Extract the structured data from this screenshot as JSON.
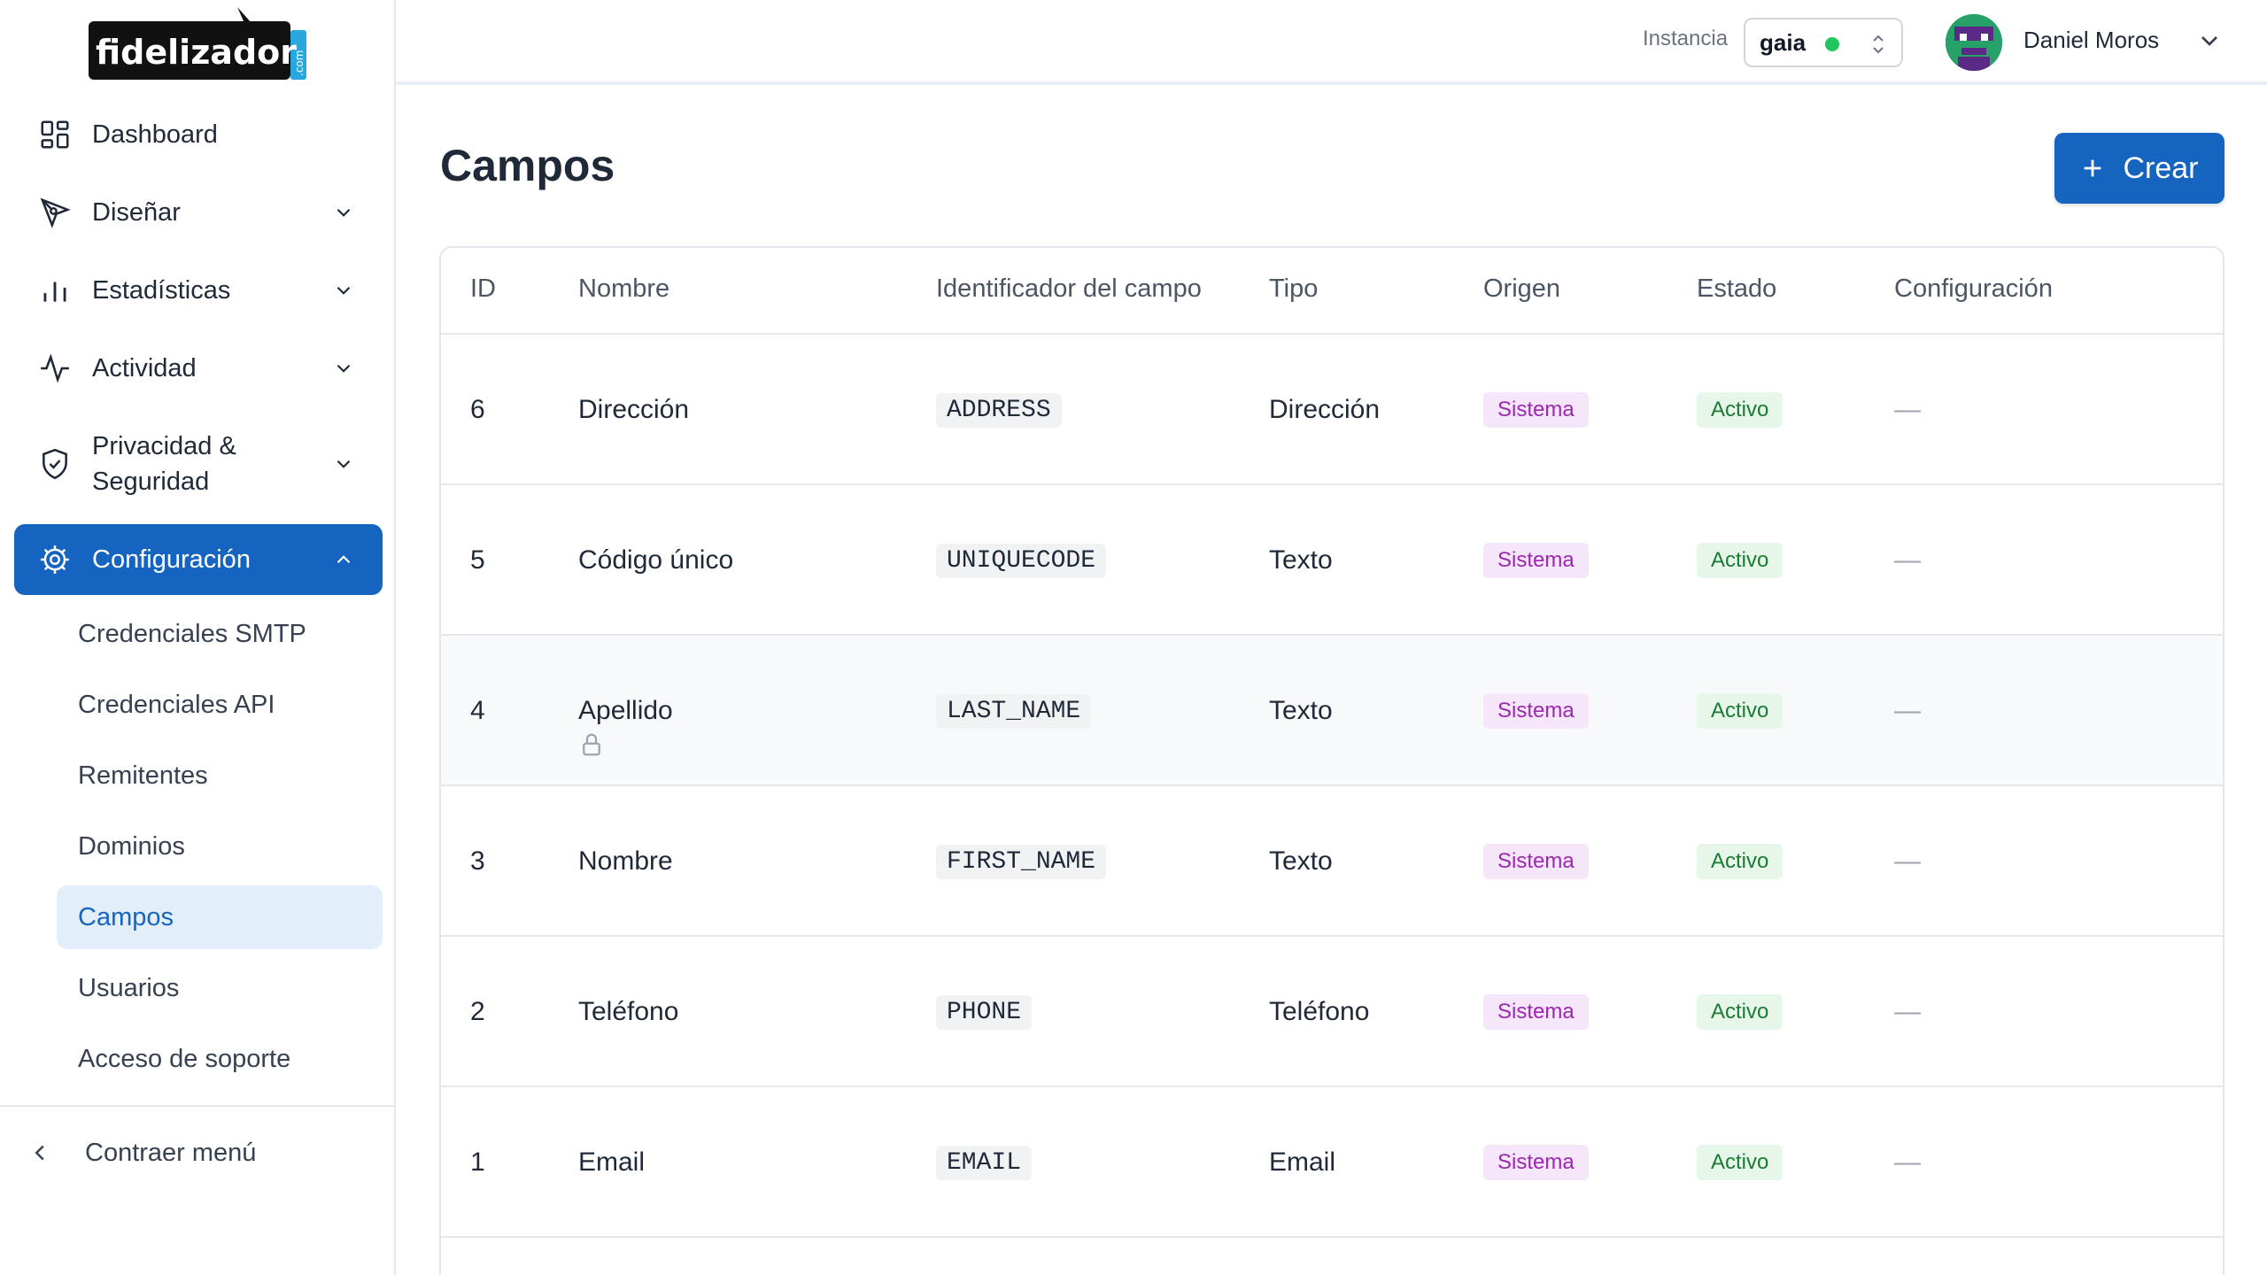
{
  "brand": {
    "logo_text": "fidelizador",
    "logo_suffix": ".com"
  },
  "sidebar": {
    "items": [
      {
        "label": "Dashboard",
        "icon": "dashboard-icon"
      },
      {
        "label": "Diseñar",
        "icon": "pen-tool-icon"
      },
      {
        "label": "Estadísticas",
        "icon": "bar-chart-icon"
      },
      {
        "label": "Actividad",
        "icon": "activity-icon"
      },
      {
        "label": "Privacidad & Seguridad",
        "icon": "shield-check-icon"
      },
      {
        "label": "Configuración",
        "icon": "gear-icon"
      }
    ],
    "sub_items": [
      {
        "label": "Credenciales SMTP"
      },
      {
        "label": "Credenciales API"
      },
      {
        "label": "Remitentes"
      },
      {
        "label": "Dominios"
      },
      {
        "label": "Campos"
      },
      {
        "label": "Usuarios"
      },
      {
        "label": "Acceso de soporte"
      }
    ],
    "collapse_label": "Contraer menú"
  },
  "topbar": {
    "instance_label": "Instancia",
    "instance_value": "gaia",
    "user_name": "Daniel Moros"
  },
  "page": {
    "title": "Campos",
    "create_label": "Crear"
  },
  "table": {
    "headers": [
      "ID",
      "Nombre",
      "Identificador del campo",
      "Tipo",
      "Origen",
      "Estado",
      "Configuración"
    ],
    "rows": [
      {
        "id": "6",
        "nombre": "Dirección",
        "identificador": "ADDRESS",
        "tipo": "Dirección",
        "origen": "Sistema",
        "estado": "Activo",
        "config": "—"
      },
      {
        "id": "5",
        "nombre": "Código único",
        "identificador": "UNIQUECODE",
        "tipo": "Texto",
        "origen": "Sistema",
        "estado": "Activo",
        "config": "—"
      },
      {
        "id": "4",
        "nombre": "Apellido",
        "identificador": "LAST_NAME",
        "tipo": "Texto",
        "origen": "Sistema",
        "estado": "Activo",
        "config": "—"
      },
      {
        "id": "3",
        "nombre": "Nombre",
        "identificador": "FIRST_NAME",
        "tipo": "Texto",
        "origen": "Sistema",
        "estado": "Activo",
        "config": "—"
      },
      {
        "id": "2",
        "nombre": "Teléfono",
        "identificador": "PHONE",
        "tipo": "Teléfono",
        "origen": "Sistema",
        "estado": "Activo",
        "config": "—"
      },
      {
        "id": "1",
        "nombre": "Email",
        "identificador": "EMAIL",
        "tipo": "Email",
        "origen": "Sistema",
        "estado": "Activo",
        "config": "—"
      }
    ]
  },
  "colors": {
    "primary": "#1565c0",
    "selected_bg": "#e3eefb",
    "badge_sistema_bg": "#f5e6fa",
    "badge_sistema_text": "#9c27b0",
    "badge_activo_bg": "#e6f7ea",
    "badge_activo_text": "#1b7a34",
    "status_dot": "#22c55e"
  }
}
